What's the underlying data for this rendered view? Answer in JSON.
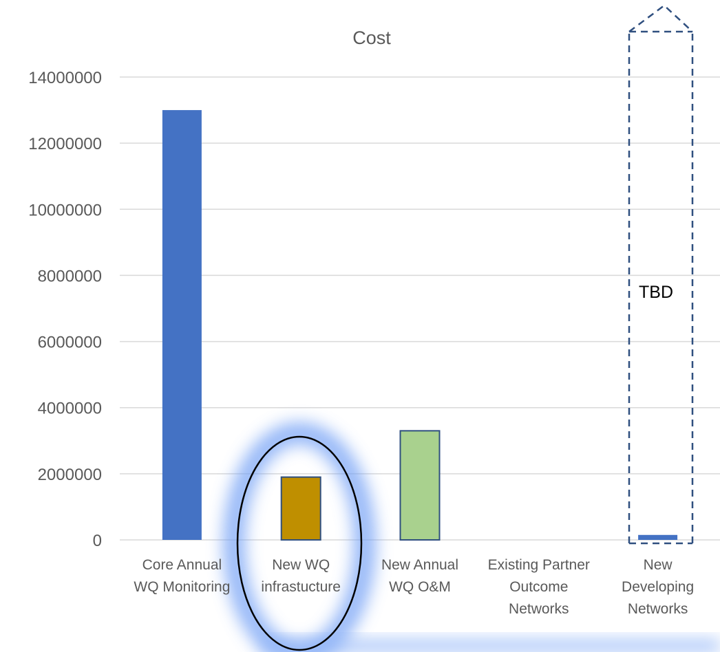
{
  "chart_data": {
    "type": "bar",
    "title": "Cost",
    "xlabel": "",
    "ylabel": "",
    "ylim": [
      0,
      14000000
    ],
    "yticks": [
      0,
      2000000,
      4000000,
      6000000,
      8000000,
      10000000,
      12000000,
      14000000
    ],
    "ytick_labels": [
      "0",
      "2000000",
      "4000000",
      "6000000",
      "8000000",
      "10000000",
      "12000000",
      "14000000"
    ],
    "grid": true,
    "legend": "none",
    "categories": [
      [
        "Core Annual",
        "WQ Monitoring"
      ],
      [
        "New WQ",
        "infrastucture"
      ],
      [
        "New Annual",
        "WQ O&M"
      ],
      [
        "Existing Partner",
        "Outcome",
        "Networks"
      ],
      [
        "New",
        "Developing",
        "Networks"
      ]
    ],
    "values": [
      13000000,
      1900000,
      3300000,
      0,
      150000
    ],
    "colors": [
      "#4472c4",
      "#bf8f00",
      "#a9d18e",
      "#4472c4",
      "#4472c4"
    ],
    "annotations": {
      "tbd_label": "TBD",
      "highlight_category_index": 1,
      "tbd_category_index": 4
    }
  }
}
